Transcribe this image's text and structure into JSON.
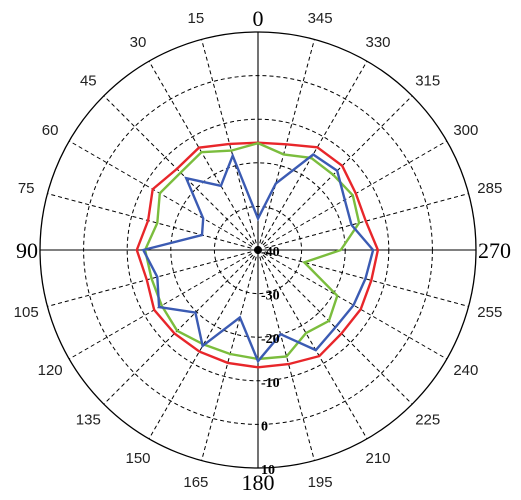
{
  "chart_data": {
    "type": "polar-line",
    "angle_direction": "counterclockwise",
    "zero_position": "top",
    "angle_step": 15,
    "angle_tick_labels": [
      "0",
      "15",
      "30",
      "45",
      "60",
      "75",
      "90",
      "105",
      "120",
      "135",
      "150",
      "165",
      "180",
      "195",
      "210",
      "225",
      "240",
      "255",
      "270",
      "285",
      "300",
      "315",
      "330",
      "345"
    ],
    "major_angle_labels": [
      "0",
      "90",
      "180",
      "270"
    ],
    "radial_range": [
      -40,
      10
    ],
    "radial_ticks": [
      -40,
      -30,
      -20,
      -10,
      0,
      10
    ],
    "radial_tick_labels": [
      "-40",
      "-30",
      "-20",
      "-10",
      "0",
      "10"
    ],
    "grid": true,
    "angles": [
      0,
      15,
      30,
      45,
      60,
      75,
      90,
      105,
      120,
      135,
      150,
      165,
      180,
      195,
      210,
      225,
      240,
      255,
      270,
      285,
      300,
      315,
      330,
      345
    ],
    "series": [
      {
        "color": "#e8262a",
        "values": [
          -15.4,
          -14.8,
          -12.9,
          -13.7,
          -12.1,
          -13.9,
          -12.2,
          -13.6,
          -12.5,
          -12.9,
          -13.1,
          -13.2,
          -13.1,
          -12.9,
          -11.9,
          -12.9,
          -12.8,
          -13.1,
          -12.5,
          -14.4,
          -14.1,
          -12.7,
          -12.8,
          -14.9
        ]
      },
      {
        "color": "#7bbd3d",
        "values": [
          -15.5,
          -16.4,
          -14.1,
          -14.9,
          -14.0,
          -16.1,
          -14.1,
          -14.7,
          -14.5,
          -13.8,
          -15.0,
          -15.3,
          -15.0,
          -14.7,
          -18.0,
          -17.0,
          -19.0,
          -29.0,
          -21.0,
          -16.0,
          -14.9,
          -15.6,
          -15.6,
          -17.3
        ]
      },
      {
        "color": "#3b5bb3",
        "values": [
          -32.8,
          -17.6,
          -23.0,
          -16.7,
          -25.5,
          -26.7,
          -13.7,
          -16.1,
          -13.8,
          -19.7,
          -14.6,
          -24.0,
          -14.5,
          -20.0,
          -13.5,
          -14.9,
          -14.7,
          -14.5,
          -13.6,
          -17.8,
          -17.0,
          -14.3,
          -14.7,
          -24.2
        ]
      }
    ]
  }
}
